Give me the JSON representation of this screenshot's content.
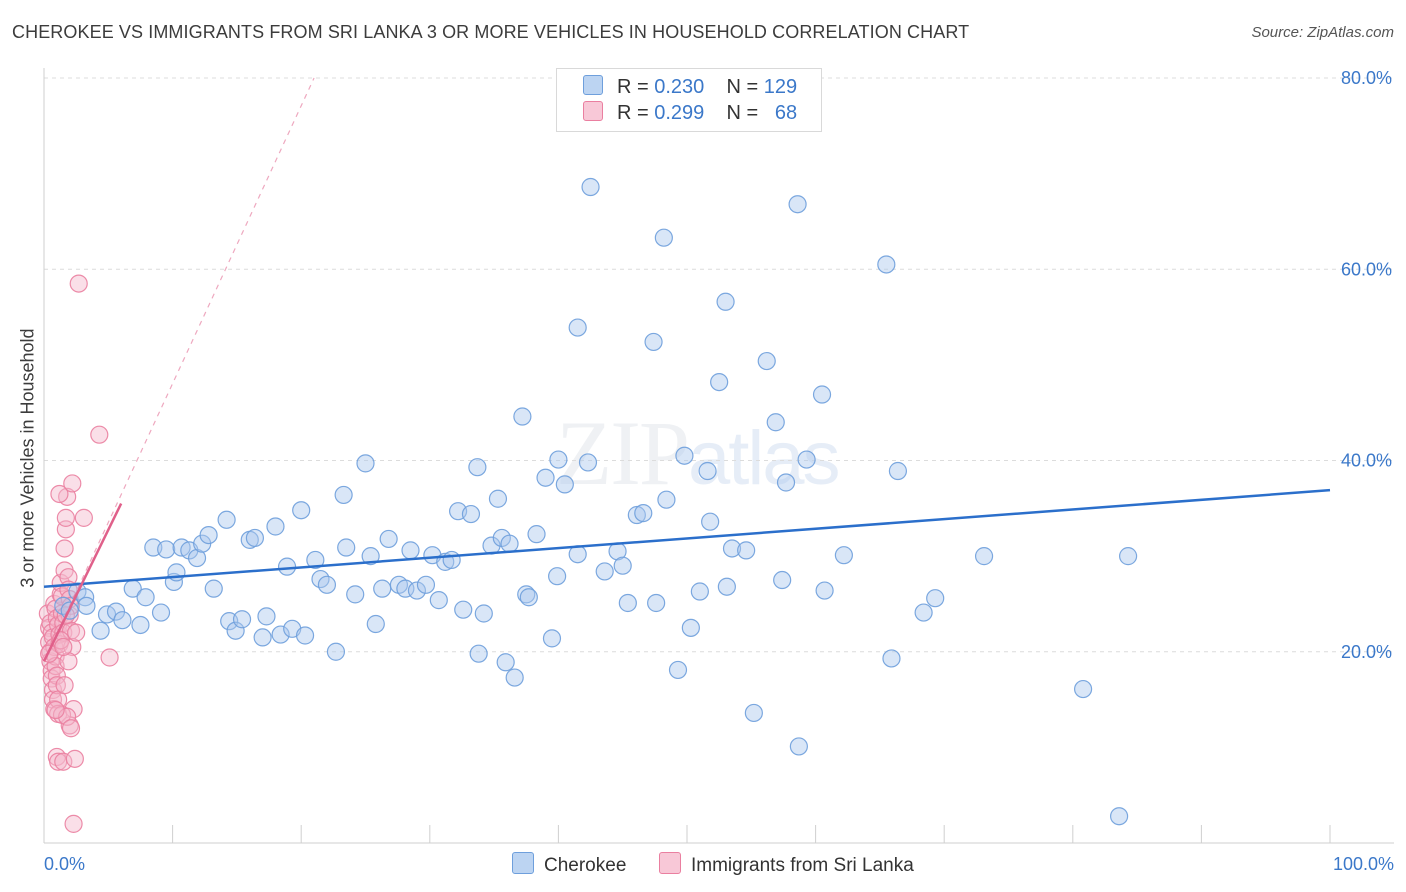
{
  "title": "CHEROKEE VS IMMIGRANTS FROM SRI LANKA 3 OR MORE VEHICLES IN HOUSEHOLD CORRELATION CHART",
  "source": "Source: ZipAtlas.com",
  "watermark": {
    "zip": "ZIP",
    "atlas": "atlas"
  },
  "legend": {
    "rows": [
      {
        "r_label": "R =",
        "r_value": "0.230",
        "n_label": "N =",
        "n_value": "129"
      },
      {
        "r_label": "R =",
        "r_value": "0.299",
        "n_label": "N =",
        "n_value": "68"
      }
    ]
  },
  "colors": {
    "blue_fill": "#aac8ee",
    "blue_stroke": "#6e9fdc",
    "blue_line": "#2b6fcb",
    "pink_fill": "#f5b8cb",
    "pink_stroke": "#ea7fa0",
    "pink_line": "#e0608a",
    "grid": "#dcdcdc",
    "tick": "#3b78c9"
  },
  "chart_data": {
    "type": "scatter",
    "xlabel": "",
    "ylabel": "3 or more Vehicles in Household",
    "xlim": [
      0,
      105
    ],
    "ylim": [
      0,
      82
    ],
    "x_tick_labels": [
      {
        "value": 0,
        "label": "0.0%"
      },
      {
        "value": 100,
        "label": "100.0%"
      }
    ],
    "y_tick_labels": [
      {
        "value": 20,
        "label": "20.0%"
      },
      {
        "value": 40,
        "label": "40.0%"
      },
      {
        "value": 60,
        "label": "60.0%"
      },
      {
        "value": 80,
        "label": "80.0%"
      }
    ],
    "legend_position": "top-center",
    "grid": true,
    "series": [
      {
        "name": "Cherokee",
        "color": "#aac8ee",
        "trend": {
          "x": [
            0,
            100
          ],
          "y": [
            26.8,
            36.9
          ]
        },
        "points": [
          [
            1.5,
            24.8
          ],
          [
            2.0,
            24.3
          ],
          [
            2.6,
            26.3
          ],
          [
            3.2,
            25.7
          ],
          [
            3.3,
            24.8
          ],
          [
            4.4,
            22.2
          ],
          [
            4.9,
            23.9
          ],
          [
            5.6,
            24.2
          ],
          [
            6.1,
            23.3
          ],
          [
            6.9,
            26.6
          ],
          [
            7.5,
            22.8
          ],
          [
            7.9,
            25.7
          ],
          [
            8.5,
            30.9
          ],
          [
            9.1,
            24.1
          ],
          [
            9.5,
            30.7
          ],
          [
            10.1,
            27.3
          ],
          [
            10.3,
            28.3
          ],
          [
            10.7,
            30.9
          ],
          [
            11.3,
            30.6
          ],
          [
            11.9,
            29.8
          ],
          [
            12.3,
            31.3
          ],
          [
            12.8,
            32.2
          ],
          [
            13.2,
            26.6
          ],
          [
            14.2,
            33.8
          ],
          [
            14.4,
            23.2
          ],
          [
            14.9,
            22.2
          ],
          [
            15.4,
            23.4
          ],
          [
            16.0,
            31.7
          ],
          [
            16.4,
            31.9
          ],
          [
            17.0,
            21.5
          ],
          [
            17.3,
            23.7
          ],
          [
            18.0,
            33.1
          ],
          [
            18.4,
            21.8
          ],
          [
            18.9,
            28.9
          ],
          [
            19.3,
            22.4
          ],
          [
            20.0,
            34.8
          ],
          [
            20.3,
            21.7
          ],
          [
            21.1,
            29.6
          ],
          [
            21.5,
            27.6
          ],
          [
            22.0,
            27.0
          ],
          [
            22.7,
            20.0
          ],
          [
            23.3,
            36.4
          ],
          [
            23.5,
            30.9
          ],
          [
            24.2,
            26.0
          ],
          [
            25.0,
            39.7
          ],
          [
            25.4,
            30.0
          ],
          [
            25.8,
            22.9
          ],
          [
            26.3,
            26.6
          ],
          [
            26.8,
            31.8
          ],
          [
            27.6,
            27.0
          ],
          [
            28.1,
            26.6
          ],
          [
            28.5,
            30.6
          ],
          [
            29.0,
            26.4
          ],
          [
            29.7,
            27.0
          ],
          [
            30.2,
            30.1
          ],
          [
            30.7,
            25.4
          ],
          [
            31.2,
            29.4
          ],
          [
            31.7,
            29.6
          ],
          [
            32.2,
            34.7
          ],
          [
            32.6,
            24.4
          ],
          [
            33.2,
            34.4
          ],
          [
            33.7,
            39.3
          ],
          [
            33.8,
            19.8
          ],
          [
            34.2,
            24.0
          ],
          [
            34.8,
            31.1
          ],
          [
            35.3,
            36.0
          ],
          [
            35.6,
            31.9
          ],
          [
            35.9,
            18.9
          ],
          [
            36.2,
            31.3
          ],
          [
            36.6,
            17.3
          ],
          [
            37.2,
            44.6
          ],
          [
            37.5,
            26.0
          ],
          [
            37.7,
            25.7
          ],
          [
            38.3,
            32.3
          ],
          [
            39.0,
            38.2
          ],
          [
            39.5,
            21.4
          ],
          [
            39.9,
            27.9
          ],
          [
            40.0,
            40.1
          ],
          [
            40.5,
            37.5
          ],
          [
            41.5,
            53.9
          ],
          [
            41.5,
            30.2
          ],
          [
            42.3,
            39.8
          ],
          [
            42.5,
            68.6
          ],
          [
            43.6,
            28.4
          ],
          [
            44.6,
            30.5
          ],
          [
            45.0,
            29.0
          ],
          [
            45.4,
            25.1
          ],
          [
            46.1,
            34.3
          ],
          [
            46.6,
            34.5
          ],
          [
            47.4,
            52.4
          ],
          [
            47.6,
            25.1
          ],
          [
            48.2,
            63.3
          ],
          [
            48.4,
            35.9
          ],
          [
            49.3,
            18.1
          ],
          [
            49.8,
            40.5
          ],
          [
            50.3,
            22.5
          ],
          [
            51.0,
            26.3
          ],
          [
            51.6,
            38.9
          ],
          [
            51.8,
            33.6
          ],
          [
            52.5,
            48.2
          ],
          [
            53.0,
            56.6
          ],
          [
            53.1,
            26.8
          ],
          [
            53.5,
            30.8
          ],
          [
            54.6,
            30.6
          ],
          [
            55.2,
            13.6
          ],
          [
            56.2,
            50.4
          ],
          [
            56.9,
            44.0
          ],
          [
            57.4,
            27.5
          ],
          [
            57.7,
            37.7
          ],
          [
            58.6,
            66.8
          ],
          [
            58.7,
            10.1
          ],
          [
            59.3,
            40.1
          ],
          [
            60.5,
            46.9
          ],
          [
            60.7,
            26.4
          ],
          [
            62.2,
            30.1
          ],
          [
            65.5,
            60.5
          ],
          [
            65.9,
            19.3
          ],
          [
            66.4,
            38.9
          ],
          [
            68.4,
            24.1
          ],
          [
            69.3,
            25.6
          ],
          [
            73.1,
            30.0
          ],
          [
            80.8,
            16.1
          ],
          [
            83.6,
            2.8
          ],
          [
            84.3,
            30.0
          ]
        ]
      },
      {
        "name": "Immigrants from Sri Lanka",
        "color": "#f5b8cb",
        "trend": {
          "x": [
            0,
            6.0
          ],
          "y": [
            19.0,
            35.5
          ]
        },
        "trend_extended": {
          "x": [
            0,
            21.0
          ],
          "y": [
            19.0,
            80.0
          ]
        },
        "points": [
          [
            0.3,
            24.0
          ],
          [
            0.4,
            22.5
          ],
          [
            0.4,
            21.0
          ],
          [
            0.5,
            20.0
          ],
          [
            0.5,
            19.0
          ],
          [
            0.6,
            18.0
          ],
          [
            0.6,
            17.2
          ],
          [
            0.7,
            16.0
          ],
          [
            0.7,
            15.0
          ],
          [
            0.8,
            14.0
          ],
          [
            0.5,
            23.0
          ],
          [
            0.6,
            22.0
          ],
          [
            0.7,
            21.5
          ],
          [
            0.8,
            20.5
          ],
          [
            0.9,
            19.5
          ],
          [
            0.9,
            18.5
          ],
          [
            1.0,
            17.5
          ],
          [
            1.0,
            16.5
          ],
          [
            1.1,
            15.0
          ],
          [
            1.1,
            13.5
          ],
          [
            0.8,
            25.0
          ],
          [
            0.9,
            24.5
          ],
          [
            1.0,
            23.5
          ],
          [
            1.1,
            22.8
          ],
          [
            1.2,
            21.8
          ],
          [
            1.2,
            20.8
          ],
          [
            1.3,
            26.0
          ],
          [
            1.3,
            27.2
          ],
          [
            1.4,
            25.8
          ],
          [
            1.4,
            24.0
          ],
          [
            1.5,
            23.0
          ],
          [
            1.5,
            22.0
          ],
          [
            1.6,
            28.5
          ],
          [
            1.6,
            30.8
          ],
          [
            1.7,
            32.8
          ],
          [
            1.7,
            34.0
          ],
          [
            1.8,
            36.2
          ],
          [
            1.2,
            36.5
          ],
          [
            1.9,
            27.8
          ],
          [
            1.9,
            26.5
          ],
          [
            2.0,
            25.5
          ],
          [
            2.0,
            23.8
          ],
          [
            2.1,
            22.2
          ],
          [
            2.2,
            20.5
          ],
          [
            2.3,
            14.0
          ],
          [
            2.0,
            12.3
          ],
          [
            1.4,
            13.4
          ],
          [
            1.6,
            16.5
          ],
          [
            1.9,
            19.0
          ],
          [
            1.0,
            9.0
          ],
          [
            1.1,
            8.5
          ],
          [
            1.5,
            8.5
          ],
          [
            2.4,
            8.8
          ],
          [
            2.3,
            2.0
          ],
          [
            2.1,
            24.8
          ],
          [
            1.7,
            23.8
          ],
          [
            2.5,
            22.0
          ],
          [
            1.3,
            21.2
          ],
          [
            0.4,
            19.8
          ],
          [
            2.2,
            37.6
          ],
          [
            2.7,
            58.5
          ],
          [
            4.3,
            42.7
          ],
          [
            3.1,
            34.0
          ],
          [
            5.1,
            19.4
          ],
          [
            1.8,
            13.2
          ],
          [
            2.1,
            12.0
          ],
          [
            0.9,
            13.9
          ],
          [
            1.5,
            20.5
          ]
        ]
      }
    ]
  },
  "bottom_legend": {
    "items": [
      {
        "label": "Cherokee"
      },
      {
        "label": "Immigrants from Sri Lanka"
      }
    ]
  }
}
